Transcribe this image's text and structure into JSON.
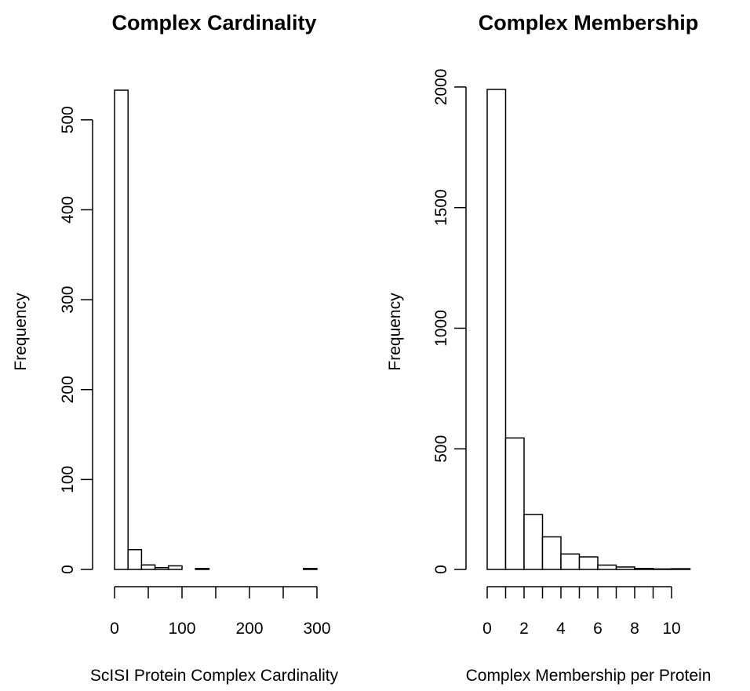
{
  "chart_data": [
    {
      "type": "bar",
      "title": "Complex Cardinality",
      "xlabel": "ScISI Protein Complex Cardinality",
      "ylabel": "Frequency",
      "bin_width": 20,
      "bin_start": 0,
      "values": [
        533,
        22,
        5,
        2,
        4,
        0,
        1,
        0,
        0,
        0,
        0,
        0,
        0,
        0,
        1
      ],
      "xlim": [
        0,
        300
      ],
      "ylim": [
        0,
        533
      ],
      "x_ticks": [
        0,
        50,
        100,
        150,
        200,
        250,
        300
      ],
      "x_tick_labels": [
        "0",
        "",
        "100",
        "",
        "200",
        "",
        "300"
      ],
      "y_ticks": [
        0,
        100,
        200,
        300,
        400,
        500
      ],
      "y_tick_labels": [
        "0",
        "100",
        "200",
        "300",
        "400",
        "500"
      ],
      "grid": false
    },
    {
      "type": "bar",
      "title": "Complex Membership",
      "xlabel": "Complex Membership per Protein",
      "ylabel": "Frequency",
      "bin_width": 1,
      "bin_start": 0,
      "values": [
        1990,
        545,
        228,
        135,
        64,
        52,
        18,
        10,
        4,
        2,
        3
      ],
      "xlim": [
        0,
        10
      ],
      "ylim": [
        0,
        1990
      ],
      "x_ticks": [
        0,
        1,
        2,
        3,
        4,
        5,
        6,
        7,
        8,
        9,
        10
      ],
      "x_tick_labels": [
        "0",
        "",
        "2",
        "",
        "4",
        "",
        "6",
        "",
        "8",
        "",
        "10"
      ],
      "y_ticks": [
        0,
        500,
        1000,
        1500,
        2000
      ],
      "y_tick_labels": [
        "0",
        "500",
        "1000",
        "1500",
        "2000"
      ],
      "grid": false
    }
  ]
}
